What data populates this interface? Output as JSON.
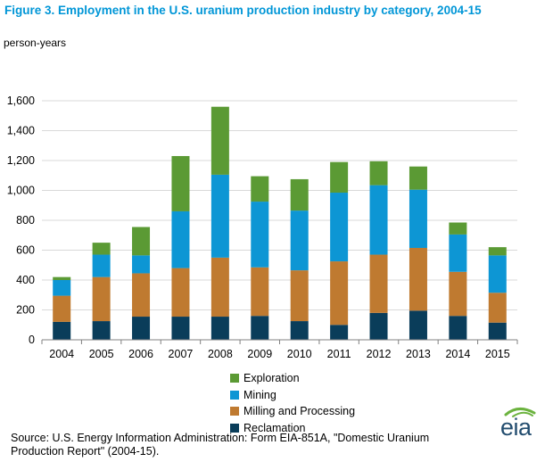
{
  "title": "Figure 3.  Employment in the U.S. uranium production industry by category, 2004-15",
  "unit_label": "person-years",
  "source": "Source: U.S. Energy Information Administration: Form EIA-851A, \"Domestic Uranium Production Report\" (2004-15).",
  "logo": {
    "text": "eia",
    "color": "#234d6f",
    "accent": "#6cb33f"
  },
  "chart_data": {
    "type": "bar",
    "stacked": true,
    "categories": [
      "2004",
      "2005",
      "2006",
      "2007",
      "2008",
      "2009",
      "2010",
      "2011",
      "2012",
      "2013",
      "2014",
      "2015"
    ],
    "ylim": [
      0,
      1600
    ],
    "yticks": [
      0,
      200,
      400,
      600,
      800,
      1000,
      1200,
      1400,
      1600
    ],
    "ytick_labels": [
      "0",
      "200",
      "400",
      "600",
      "800",
      "1,000",
      "1,200",
      "1,400",
      "1,600"
    ],
    "grid": true,
    "legend_position": "bottom",
    "series": [
      {
        "name": "Reclamation",
        "color": "#0a3d5a",
        "values": [
          120,
          125,
          155,
          155,
          155,
          160,
          125,
          100,
          180,
          195,
          160,
          115
        ]
      },
      {
        "name": "Milling and Processing",
        "color": "#bf7a30",
        "values": [
          175,
          295,
          290,
          325,
          395,
          325,
          340,
          425,
          390,
          420,
          295,
          200
        ]
      },
      {
        "name": "Mining",
        "color": "#0d96d4",
        "values": [
          105,
          150,
          120,
          380,
          555,
          440,
          400,
          460,
          465,
          390,
          250,
          250
        ]
      },
      {
        "name": "Exploration",
        "color": "#5b9a34",
        "values": [
          20,
          80,
          190,
          370,
          455,
          170,
          210,
          205,
          160,
          155,
          80,
          55
        ]
      }
    ]
  }
}
